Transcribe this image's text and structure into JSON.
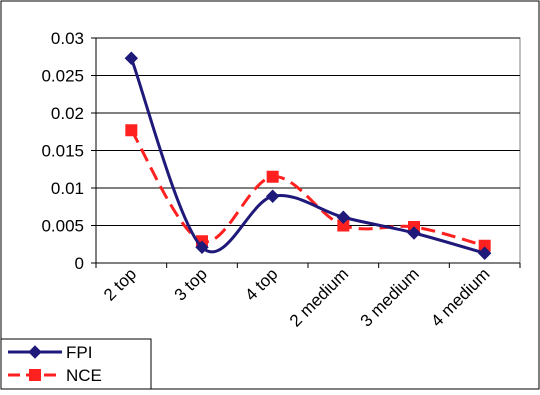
{
  "chart_data": {
    "type": "line",
    "categories": [
      "2 top",
      "3 top",
      "4 top",
      "2 medium",
      "3 medium",
      "4 medium"
    ],
    "series": [
      {
        "name": "FPI",
        "values": [
          0.0273,
          0.0021,
          0.0089,
          0.0061,
          0.004,
          0.0013
        ],
        "color": "#1f1a7a",
        "marker": "diamond",
        "dash": "solid"
      },
      {
        "name": "NCE",
        "values": [
          0.0177,
          0.0029,
          0.0115,
          0.005,
          0.0048,
          0.0023
        ],
        "color": "#ff2020",
        "marker": "square",
        "dash": "dashed"
      }
    ],
    "yticks": [
      "0",
      "0.005",
      "0.01",
      "0.015",
      "0.02",
      "0.025",
      "0.03"
    ],
    "ylim": [
      0,
      0.03
    ],
    "grid": true,
    "smooth": true,
    "legend_position": "bottom-left"
  }
}
